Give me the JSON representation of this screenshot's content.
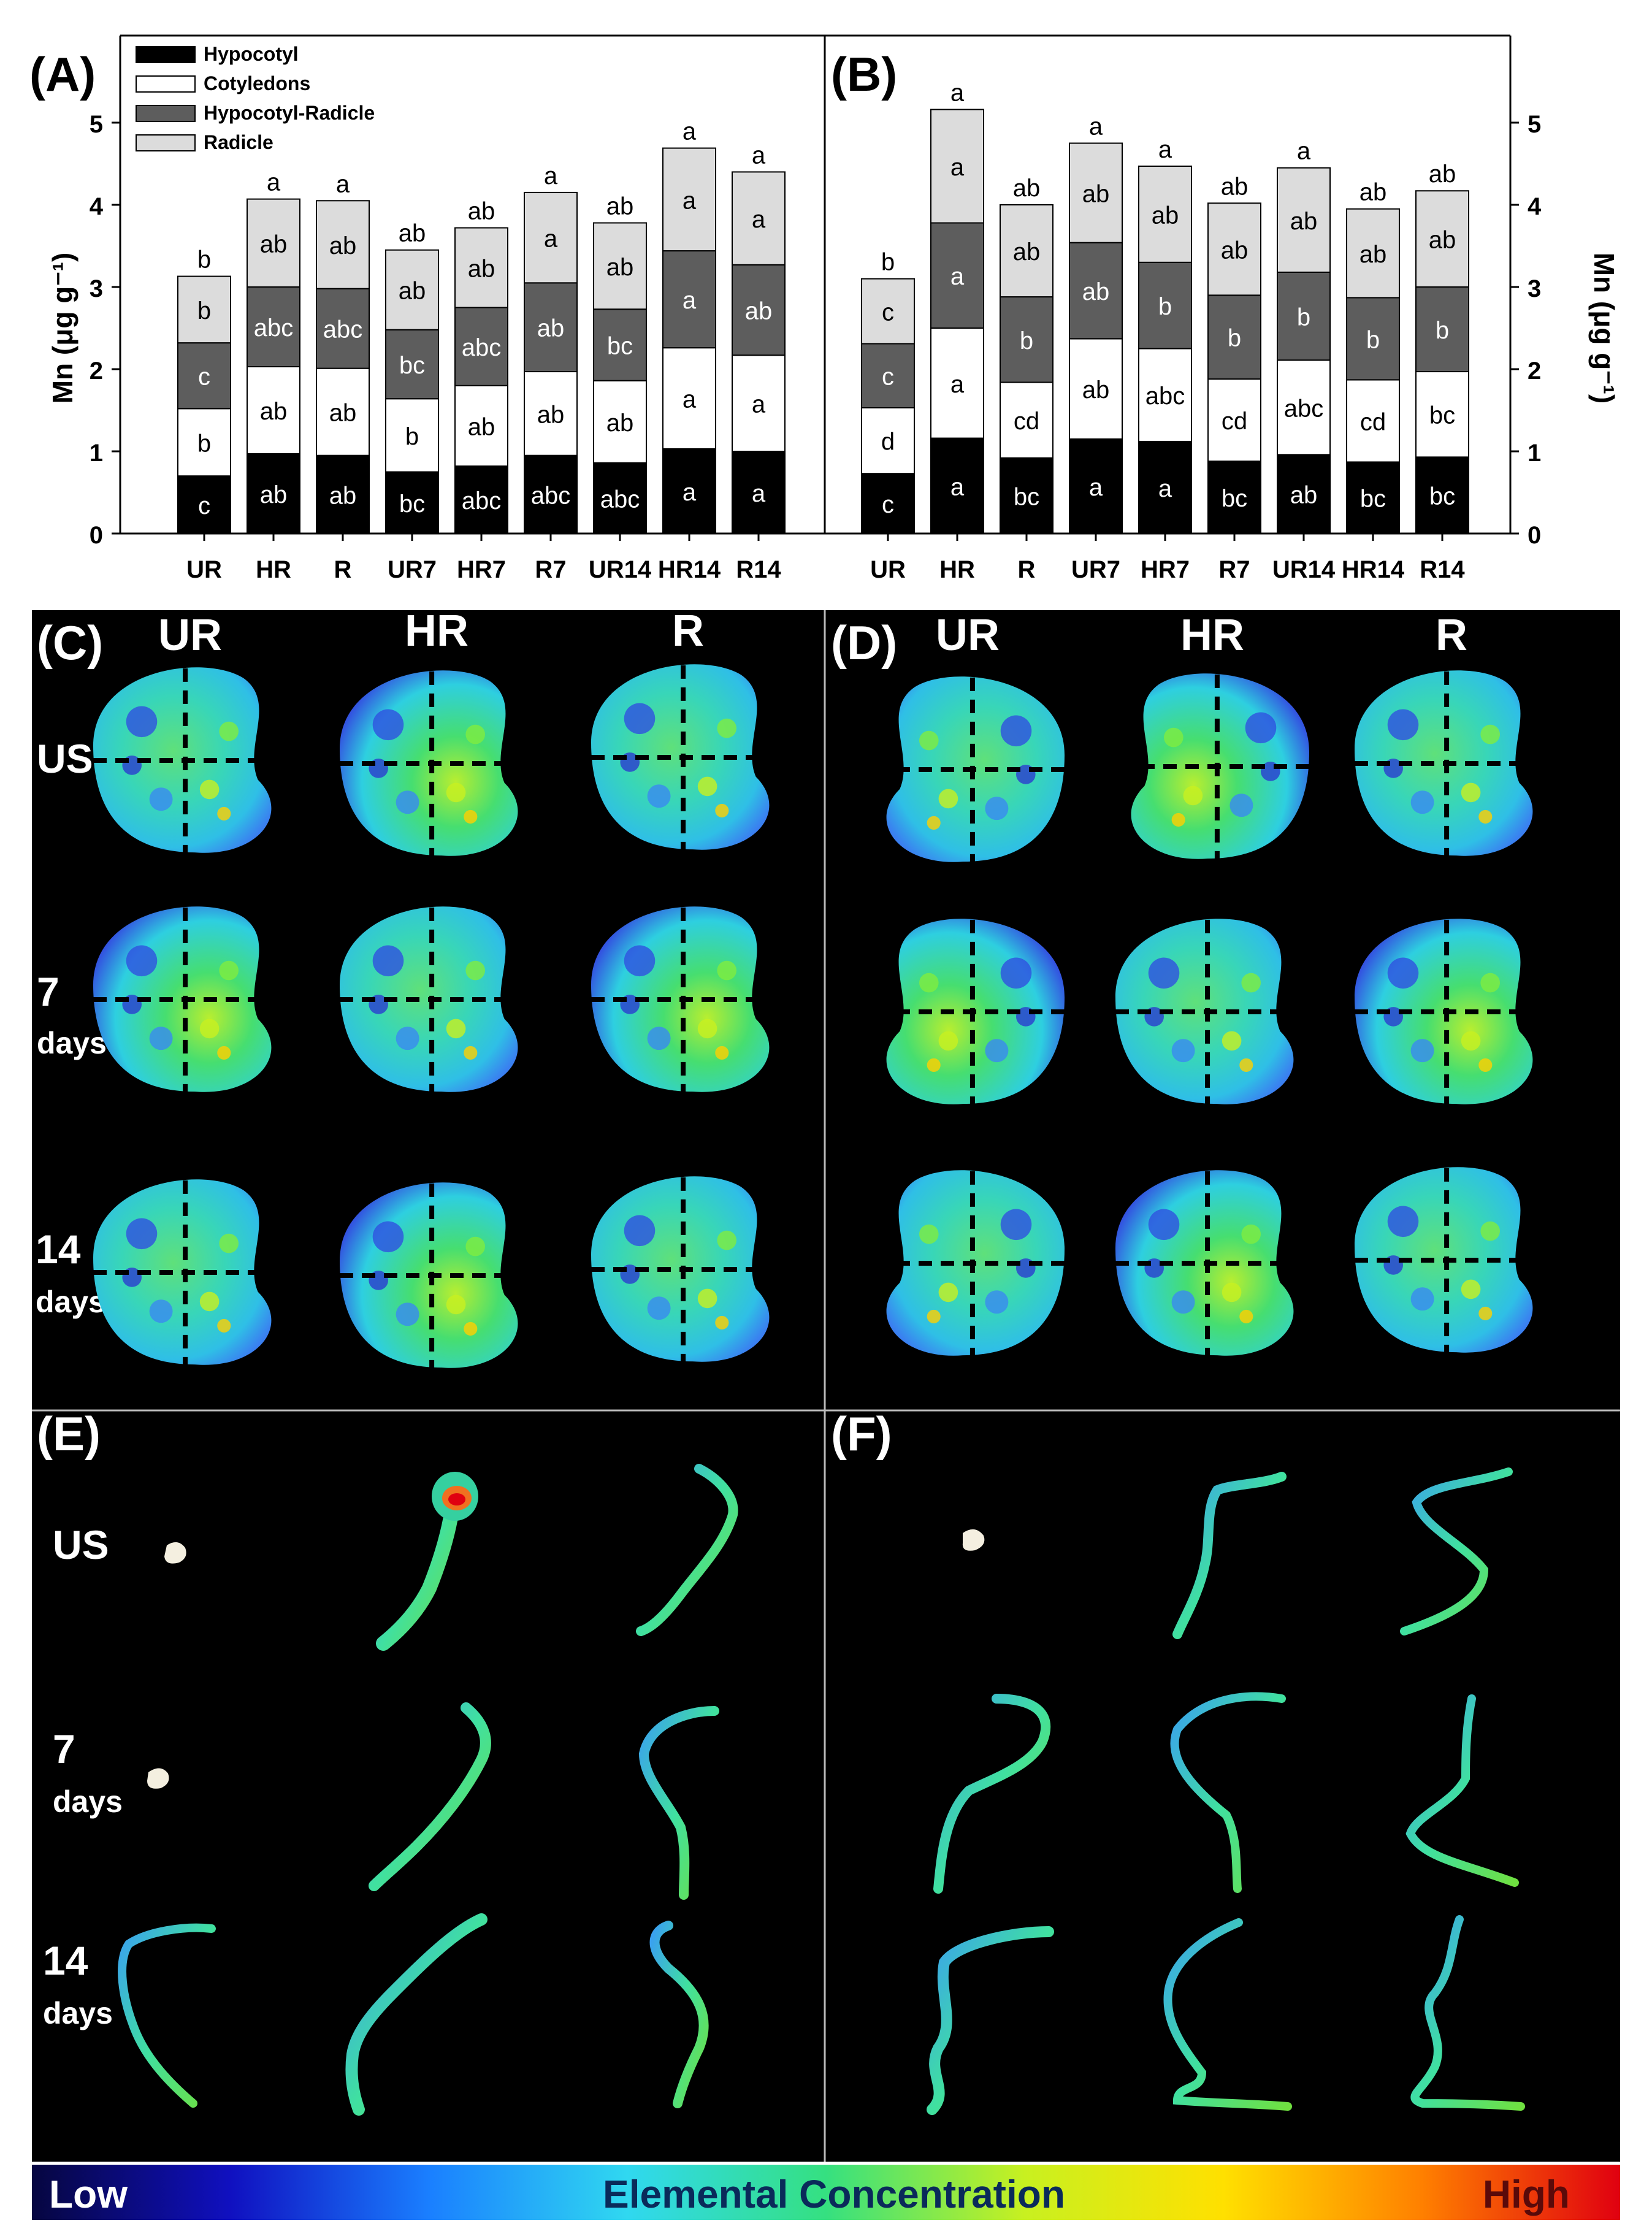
{
  "chart_data": [
    {
      "panel": "(A)",
      "type": "bar",
      "stacked": true,
      "categories": [
        "UR",
        "HR",
        "R",
        "UR7",
        "HR7",
        "R7",
        "UR14",
        "HR14",
        "R14"
      ],
      "ylabel": "Mn (μg g⁻¹)",
      "ylim": [
        0,
        5
      ],
      "yticks": [
        "0",
        "1",
        "2",
        "3",
        "4",
        "5"
      ],
      "legend": {
        "placement": "top-left"
      },
      "series": [
        {
          "name": "Hypocotyl",
          "color": "#000000",
          "text_color": "#ffffff",
          "values": [
            0.7,
            0.97,
            0.95,
            0.75,
            0.82,
            0.95,
            0.86,
            1.03,
            1.0
          ],
          "labels": [
            "c",
            "ab",
            "ab",
            "bc",
            "abc",
            "abc",
            "abc",
            "a",
            "a"
          ]
        },
        {
          "name": "Cotyledons",
          "color": "#ffffff",
          "text_color": "#000000",
          "values": [
            0.82,
            1.06,
            1.06,
            0.89,
            0.98,
            1.02,
            1.0,
            1.23,
            1.17
          ],
          "labels": [
            "b",
            "ab",
            "ab",
            "b",
            "ab",
            "ab",
            "ab",
            "a",
            "a"
          ]
        },
        {
          "name": "Hypocotyl-Radicle",
          "color": "#5d5d5d",
          "text_color": "#ffffff",
          "values": [
            0.8,
            0.97,
            0.97,
            0.84,
            0.95,
            1.08,
            0.87,
            1.18,
            1.1
          ],
          "labels": [
            "c",
            "abc",
            "abc",
            "bc",
            "abc",
            "ab",
            "bc",
            "a",
            "ab"
          ]
        },
        {
          "name": "Radicle",
          "color": "#dcdcdc",
          "text_color": "#000000",
          "values": [
            0.81,
            1.07,
            1.07,
            0.97,
            0.97,
            1.1,
            1.05,
            1.25,
            1.13
          ],
          "labels": [
            "b",
            "ab",
            "ab",
            "ab",
            "ab",
            "a",
            "ab",
            "a",
            "a"
          ]
        }
      ],
      "top_labels": [
        "b",
        "a",
        "a",
        "ab",
        "ab",
        "a",
        "ab",
        "a",
        "a"
      ]
    },
    {
      "panel": "(B)",
      "type": "bar",
      "stacked": true,
      "categories": [
        "UR",
        "HR",
        "R",
        "UR7",
        "HR7",
        "R7",
        "UR14",
        "HR14",
        "R14"
      ],
      "ylabel": "Mn (μg g⁻¹)",
      "ylim": [
        0,
        5
      ],
      "yticks": [
        "0",
        "1",
        "2",
        "3",
        "4",
        "5"
      ],
      "series": [
        {
          "name": "Hypocotyl",
          "color": "#000000",
          "text_color": "#ffffff",
          "values": [
            0.73,
            1.16,
            0.92,
            1.15,
            1.12,
            0.88,
            0.96,
            0.87,
            0.93
          ],
          "labels": [
            "c",
            "a",
            "bc",
            "a",
            "a",
            "bc",
            "ab",
            "bc",
            "bc"
          ]
        },
        {
          "name": "Cotyledons",
          "color": "#ffffff",
          "text_color": "#000000",
          "values": [
            0.8,
            1.34,
            0.92,
            1.22,
            1.13,
            1.0,
            1.15,
            1.0,
            1.04
          ],
          "labels": [
            "d",
            "a",
            "cd",
            "ab",
            "abc",
            "cd",
            "abc",
            "cd",
            "bc"
          ]
        },
        {
          "name": "Hypocotyl-Radicle",
          "color": "#5d5d5d",
          "text_color": "#ffffff",
          "values": [
            0.78,
            1.28,
            1.04,
            1.17,
            1.05,
            1.02,
            1.07,
            1.0,
            1.03
          ],
          "labels": [
            "c",
            "a",
            "b",
            "ab",
            "b",
            "b",
            "b",
            "b",
            "b"
          ]
        },
        {
          "name": "Radicle",
          "color": "#dcdcdc",
          "text_color": "#000000",
          "values": [
            0.79,
            1.38,
            1.12,
            1.21,
            1.17,
            1.12,
            1.27,
            1.08,
            1.17
          ],
          "labels": [
            "c",
            "a",
            "ab",
            "ab",
            "ab",
            "ab",
            "ab",
            "ab",
            "ab"
          ]
        }
      ],
      "top_labels": [
        "b",
        "a",
        "ab",
        "a",
        "a",
        "ab",
        "a",
        "ab",
        "ab"
      ]
    }
  ],
  "image_panels": {
    "C": {
      "label": "(C)",
      "columns": [
        "UR",
        "HR",
        "R"
      ],
      "rows": [
        [
          "US"
        ],
        [
          "7",
          "days"
        ],
        [
          "14",
          "days"
        ]
      ]
    },
    "D": {
      "label": "(D)",
      "columns": [
        "UR",
        "HR",
        "R"
      ]
    },
    "E": {
      "label": "(E)",
      "rows": [
        [
          "US"
        ],
        [
          "7",
          "days"
        ],
        [
          "14",
          "days"
        ]
      ]
    },
    "F": {
      "label": "(F)"
    }
  },
  "colorbar": {
    "low": "Low",
    "title": "Elemental Concentration",
    "high": "High",
    "colors": [
      "#060640",
      "#1010c0",
      "#1a7fff",
      "#30d8f0",
      "#35e080",
      "#c8f020",
      "#ffe000",
      "#ff8000",
      "#e00010"
    ]
  }
}
